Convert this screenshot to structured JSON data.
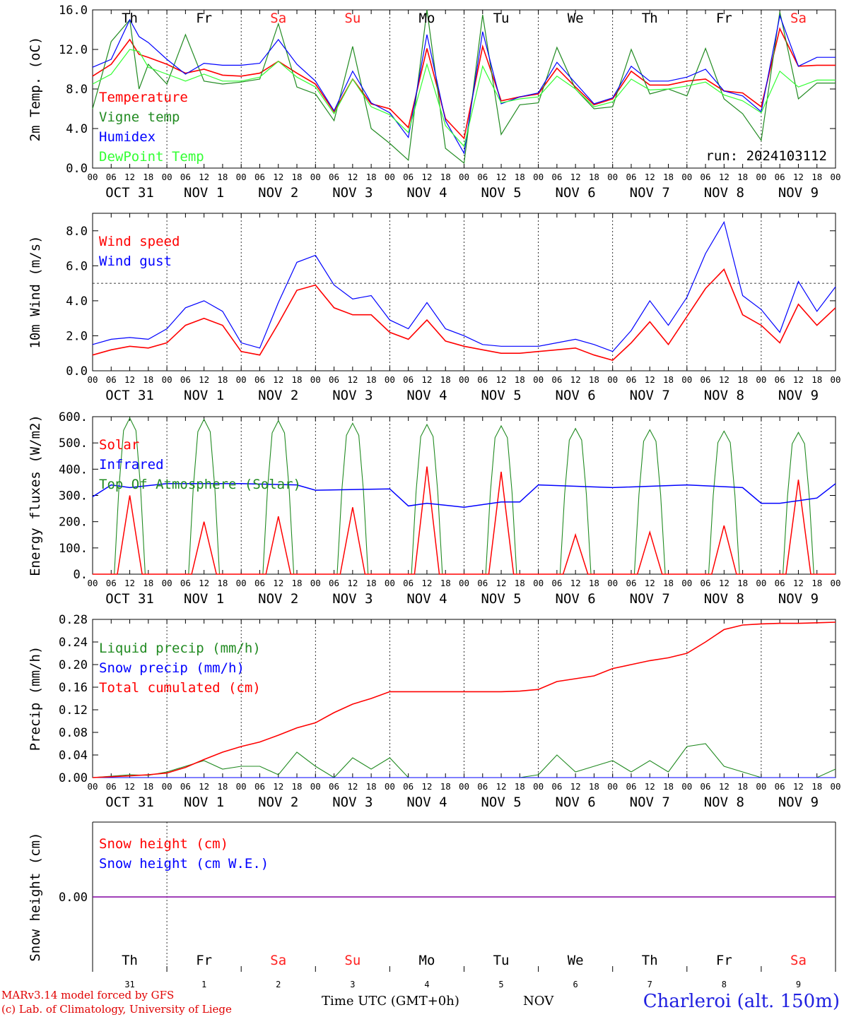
{
  "footer": {
    "model": "MARv3.14 model forced by GFS",
    "lab": "(c) Lab. of Climatology, University of Liege",
    "time_label": "Time UTC (GMT+0h)",
    "month": "NOV",
    "station": "Charleroi (alt. 150m)"
  },
  "hour_ticks": [
    "00",
    "06",
    "12",
    "18"
  ],
  "date_labels": [
    "OCT 31",
    "NOV  1",
    "NOV  2",
    "NOV  3",
    "NOV  4",
    "NOV  5",
    "NOV  6",
    "NOV  7",
    "NOV  8",
    "NOV  9"
  ],
  "day_names": [
    "Th",
    "Fr",
    "Sa",
    "Su",
    "Mo",
    "Tu",
    "We",
    "Th",
    "Fr",
    "Sa"
  ],
  "day_numbers": [
    "31",
    "1",
    "2",
    "3",
    "4",
    "5",
    "6",
    "7",
    "8",
    "9"
  ],
  "colors": {
    "red": "#ff0000",
    "darkgreen": "#228b22",
    "blue": "#0000ff",
    "lightgreen": "#33ff33",
    "purple": "#8000a0",
    "weekend": "#ff2020"
  },
  "chart_data": [
    {
      "type": "line",
      "ylabel": "2m Temp. (oC)",
      "ylim": [
        0,
        16
      ],
      "yticks": [
        "0.0",
        "4.0",
        "8.0",
        "12.0",
        "16.0"
      ],
      "x_unit": "hours since 2024-10-31 00 UTC",
      "x": [
        0,
        6,
        12,
        15,
        18,
        24,
        30,
        36,
        42,
        48,
        54,
        60,
        66,
        72,
        78,
        84,
        90,
        96,
        102,
        108,
        114,
        120,
        126,
        132,
        138,
        144,
        150,
        156,
        162,
        168,
        174,
        180,
        186,
        192,
        198,
        204,
        210,
        216,
        222,
        228,
        234,
        240
      ],
      "annotation": "run: 2024103112",
      "series": [
        {
          "name": "Temperature",
          "color": "red",
          "values": [
            9.3,
            10.5,
            13.0,
            11.5,
            11.2,
            10.5,
            9.6,
            10.0,
            9.4,
            9.3,
            9.6,
            10.8,
            9.6,
            8.5,
            5.7,
            9.0,
            6.5,
            6.0,
            4.1,
            12.1,
            5.0,
            3.0,
            12.3,
            6.8,
            7.2,
            7.5,
            10.1,
            8.2,
            6.4,
            7.0,
            9.8,
            8.4,
            8.4,
            8.8,
            9.0,
            7.8,
            7.6,
            6.2,
            14.1,
            10.3,
            10.4,
            10.4
          ]
        },
        {
          "name": "Vigne temp",
          "color": "darkgreen",
          "values": [
            6.0,
            12.8,
            15.0,
            8.0,
            10.5,
            8.5,
            13.5,
            8.8,
            8.5,
            8.7,
            9.0,
            14.6,
            8.2,
            7.5,
            4.8,
            12.3,
            4.0,
            2.5,
            0.8,
            16.0,
            2.0,
            0.5,
            15.5,
            3.4,
            6.4,
            6.6,
            12.2,
            8.0,
            6.0,
            6.2,
            12.0,
            7.5,
            8.0,
            7.3,
            12.1,
            7.0,
            5.5,
            2.8,
            15.8,
            7.0,
            8.6,
            8.6
          ]
        },
        {
          "name": "Humidex",
          "color": "blue",
          "values": [
            10.2,
            11.0,
            15.0,
            13.3,
            12.7,
            11.0,
            9.5,
            10.6,
            10.4,
            10.4,
            10.6,
            13.0,
            10.5,
            8.8,
            5.8,
            9.8,
            6.6,
            5.6,
            3.1,
            13.5,
            4.8,
            1.5,
            13.8,
            6.5,
            7.2,
            7.6,
            10.7,
            8.6,
            6.5,
            7.1,
            10.3,
            8.8,
            8.8,
            9.2,
            10.0,
            7.8,
            7.3,
            5.7,
            15.4,
            10.3,
            11.2,
            11.2
          ]
        },
        {
          "name": "DewPoint Temp",
          "color": "lightgreen",
          "values": [
            8.5,
            9.5,
            12.0,
            11.8,
            10.2,
            9.5,
            8.8,
            9.5,
            8.8,
            8.8,
            9.2,
            10.8,
            9.2,
            8.2,
            5.5,
            9.0,
            6.2,
            5.4,
            3.6,
            10.5,
            4.3,
            2.2,
            10.3,
            6.6,
            7.0,
            7.2,
            9.3,
            8.0,
            6.2,
            6.7,
            9.0,
            7.9,
            8.0,
            8.3,
            8.7,
            7.4,
            6.8,
            5.6,
            9.8,
            8.2,
            8.9,
            8.9
          ]
        }
      ]
    },
    {
      "type": "line",
      "ylabel": "10m Wind (m/s)",
      "ylim": [
        0,
        9
      ],
      "yticks": [
        "0.0",
        "2.0",
        "4.0",
        "6.0",
        "8.0"
      ],
      "reference_line": 5.0,
      "x_unit": "hours since 2024-10-31 00 UTC",
      "x": [
        0,
        6,
        12,
        18,
        24,
        30,
        36,
        42,
        48,
        54,
        60,
        66,
        72,
        78,
        84,
        90,
        96,
        102,
        108,
        114,
        120,
        126,
        132,
        138,
        144,
        150,
        156,
        162,
        168,
        174,
        180,
        186,
        192,
        198,
        204,
        210,
        216,
        222,
        228,
        234,
        240
      ],
      "series": [
        {
          "name": "Wind speed",
          "color": "red",
          "values": [
            0.9,
            1.2,
            1.4,
            1.3,
            1.6,
            2.6,
            3.0,
            2.6,
            1.1,
            0.9,
            2.7,
            4.6,
            4.9,
            3.6,
            3.2,
            3.2,
            2.2,
            1.8,
            2.9,
            1.7,
            1.4,
            1.2,
            1.0,
            1.0,
            1.1,
            1.2,
            1.3,
            0.9,
            0.6,
            1.6,
            2.8,
            1.5,
            3.1,
            4.7,
            5.8,
            3.2,
            2.6,
            1.6,
            3.8,
            2.6,
            3.6
          ]
        },
        {
          "name": "Wind gust",
          "color": "blue",
          "values": [
            1.5,
            1.8,
            1.9,
            1.8,
            2.4,
            3.6,
            4.0,
            3.4,
            1.6,
            1.3,
            3.9,
            6.2,
            6.6,
            4.9,
            4.1,
            4.3,
            2.9,
            2.4,
            3.9,
            2.4,
            2.0,
            1.5,
            1.4,
            1.4,
            1.4,
            1.6,
            1.8,
            1.5,
            1.1,
            2.3,
            4.0,
            2.6,
            4.2,
            6.7,
            8.5,
            4.3,
            3.5,
            2.2,
            5.1,
            3.4,
            4.8
          ]
        }
      ]
    },
    {
      "type": "line",
      "ylabel": "Energy fluxes (W/m2)",
      "ylim": [
        0,
        600
      ],
      "yticks": [
        "0.",
        "100.",
        "200.",
        "300.",
        "400.",
        "500.",
        "600."
      ],
      "x_unit": "hours since 2024-10-31 00 UTC",
      "solar_peaks": [
        300,
        200,
        220,
        255,
        410,
        390,
        150,
        160,
        185,
        360
      ],
      "toa_peaks": [
        595,
        590,
        585,
        575,
        570,
        565,
        555,
        550,
        545,
        540
      ],
      "infrared": {
        "x": [
          0,
          6,
          12,
          24,
          48,
          66,
          72,
          96,
          102,
          108,
          120,
          132,
          138,
          144,
          168,
          192,
          210,
          216,
          222,
          234,
          240
        ],
        "values": [
          295,
          340,
          330,
          345,
          345,
          340,
          320,
          325,
          260,
          270,
          255,
          275,
          275,
          340,
          330,
          340,
          330,
          270,
          270,
          290,
          345
        ]
      },
      "series": [
        {
          "name": "Solar",
          "color": "red"
        },
        {
          "name": "Infrared",
          "color": "blue"
        },
        {
          "name": "Top Of Atmosphere (Solar)",
          "color": "darkgreen"
        }
      ]
    },
    {
      "type": "line",
      "ylabel": "Precip (mm/h)",
      "ylim": [
        0,
        0.28
      ],
      "yticks": [
        "0.00",
        "0.04",
        "0.08",
        "0.12",
        "0.16",
        "0.20",
        "0.24",
        "0.28"
      ],
      "x_unit": "hours since 2024-10-31 00 UTC",
      "x": [
        0,
        12,
        18,
        24,
        30,
        36,
        42,
        48,
        54,
        60,
        66,
        72,
        78,
        84,
        90,
        96,
        102,
        108,
        120,
        132,
        138,
        144,
        150,
        156,
        162,
        168,
        174,
        180,
        186,
        192,
        198,
        204,
        210,
        216,
        222,
        228,
        234,
        240
      ],
      "series": [
        {
          "name": "Liquid precip (mm/h)",
          "color": "darkgreen",
          "values": [
            0.0,
            0.005,
            0.004,
            0.01,
            0.02,
            0.03,
            0.015,
            0.02,
            0.02,
            0.005,
            0.045,
            0.02,
            0.0,
            0.035,
            0.015,
            0.035,
            0.0,
            0.0,
            0.0,
            0.0,
            0.0,
            0.005,
            0.04,
            0.01,
            0.02,
            0.03,
            0.01,
            0.03,
            0.01,
            0.055,
            0.06,
            0.02,
            0.01,
            0.0,
            0.0,
            0.0,
            0.0,
            0.015
          ]
        },
        {
          "name": "Snow precip (mm/h)",
          "color": "blue",
          "values": [
            0,
            0,
            0,
            0,
            0,
            0,
            0,
            0,
            0,
            0,
            0,
            0,
            0,
            0,
            0,
            0,
            0,
            0,
            0,
            0,
            0,
            0,
            0,
            0,
            0,
            0,
            0,
            0,
            0,
            0,
            0,
            0,
            0,
            0,
            0,
            0,
            0,
            0
          ]
        },
        {
          "name": "Total cumulated (cm)",
          "color": "red",
          "values": [
            0.0,
            0.003,
            0.005,
            0.008,
            0.018,
            0.032,
            0.045,
            0.055,
            0.063,
            0.075,
            0.088,
            0.097,
            0.115,
            0.13,
            0.14,
            0.152,
            0.152,
            0.152,
            0.152,
            0.152,
            0.153,
            0.156,
            0.17,
            0.175,
            0.18,
            0.193,
            0.2,
            0.207,
            0.212,
            0.22,
            0.24,
            0.262,
            0.27,
            0.272,
            0.273,
            0.273,
            0.274,
            0.275
          ]
        }
      ]
    },
    {
      "type": "line",
      "ylabel": "Snow height (cm)",
      "yticks": [
        "0.00"
      ],
      "series": [
        {
          "name": "Snow height (cm)",
          "color": "red"
        },
        {
          "name": "Snow height (cm W.E.)",
          "color": "blue"
        }
      ]
    }
  ]
}
